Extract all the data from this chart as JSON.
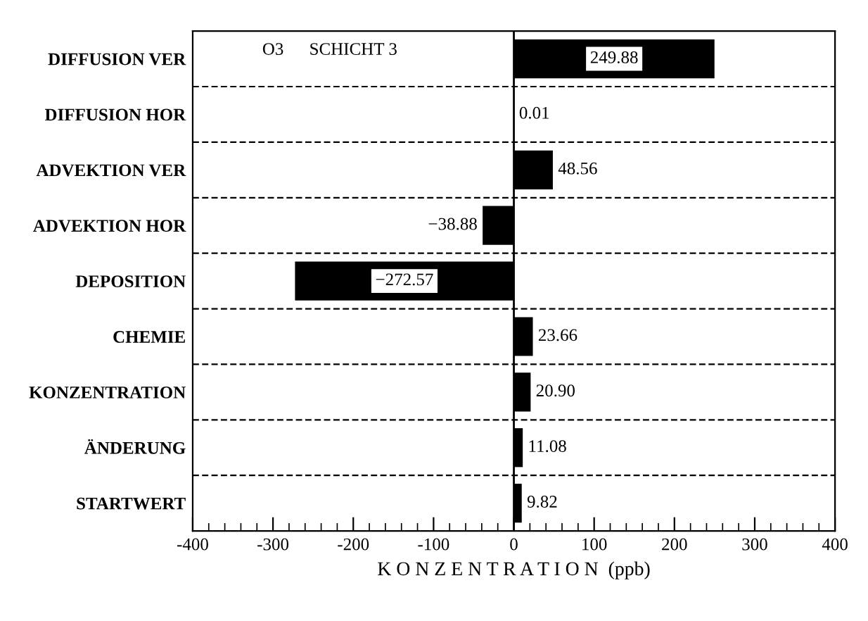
{
  "chart_data": {
    "type": "bar",
    "orientation": "horizontal",
    "xlabel": "K O N Z E N T R A T I O N  (ppb)",
    "categories": [
      "DIFFUSION VER",
      "DIFFUSION HOR",
      "ADVEKTION VER",
      "ADVEKTION HOR",
      "DEPOSITION",
      "CHEMIE",
      "KONZENTRATION",
      "ÄNDERUNG",
      "STARTWERT"
    ],
    "values": [
      249.88,
      0.01,
      48.56,
      -38.88,
      -272.57,
      23.66,
      20.9,
      11.08,
      9.82
    ],
    "value_labels": [
      "249.88",
      "0.01",
      "48.56",
      "−38.88",
      "−272.57",
      "23.66",
      "20.90",
      "11.08",
      "9.82"
    ],
    "color": "#000000",
    "xlim": [
      -400,
      400
    ],
    "xticks": [
      -400,
      -300,
      -200,
      -100,
      0,
      100,
      200,
      300,
      400
    ],
    "grid": "y",
    "annotations": [
      "O3",
      "SCHICHT 3"
    ]
  }
}
